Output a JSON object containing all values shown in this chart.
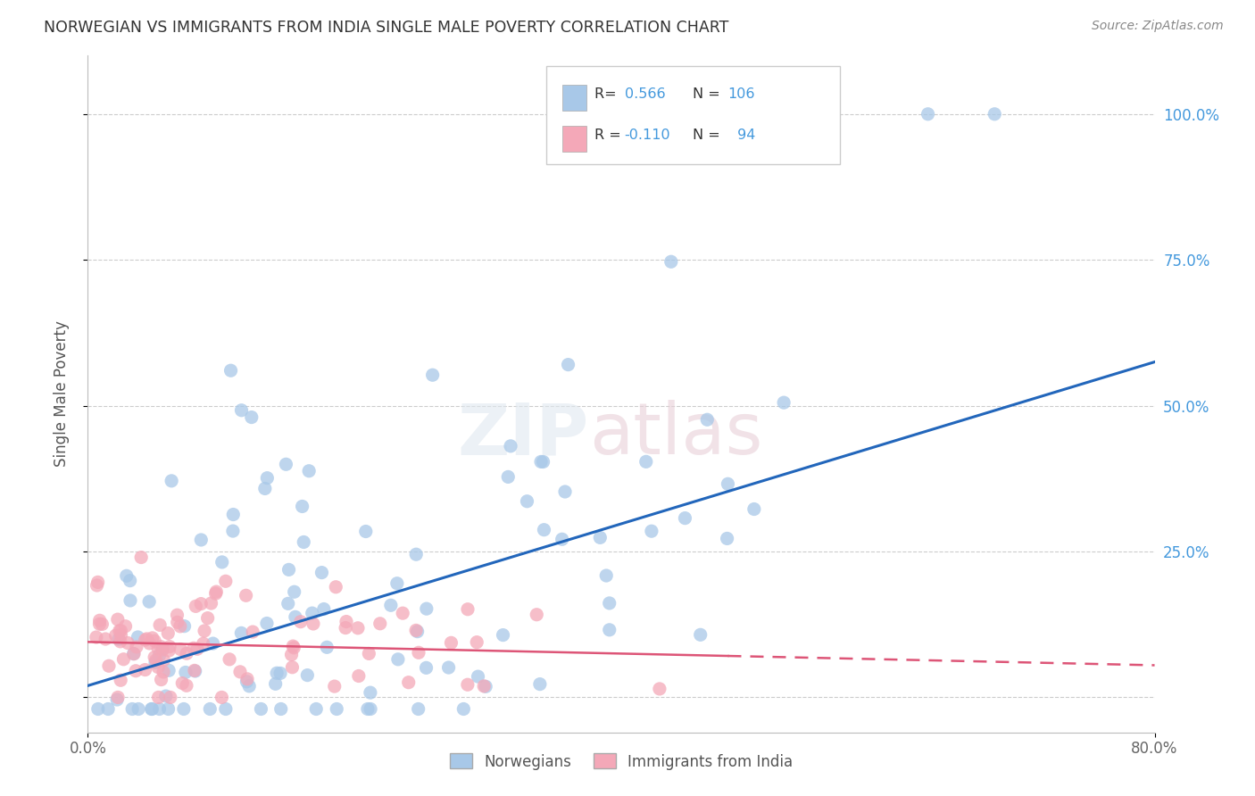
{
  "title": "NORWEGIAN VS IMMIGRANTS FROM INDIA SINGLE MALE POVERTY CORRELATION CHART",
  "source": "Source: ZipAtlas.com",
  "ylabel": "Single Male Poverty",
  "watermark": "ZIPatlas",
  "xlim": [
    0.0,
    0.8
  ],
  "ylim": [
    -0.06,
    1.1
  ],
  "yticks": [
    0.0,
    0.25,
    0.5,
    0.75,
    1.0
  ],
  "yticklabels": [
    "",
    "25.0%",
    "50.0%",
    "75.0%",
    "100.0%"
  ],
  "series1_color": "#A8C8E8",
  "series2_color": "#F4A8B8",
  "line1_color": "#2266BB",
  "line2_color": "#DD5577",
  "grid_color": "#CCCCCC",
  "background_color": "#FFFFFF",
  "title_color": "#333333",
  "right_tick_color": "#4499DD",
  "series1_label": "Norwegians",
  "series2_label": "Immigrants from India",
  "line1_x0": 0.0,
  "line1_y0": 0.02,
  "line1_x1": 0.8,
  "line1_y1": 0.575,
  "line2_x0": 0.0,
  "line2_y0": 0.095,
  "line2_x1": 0.8,
  "line2_y1": 0.055
}
